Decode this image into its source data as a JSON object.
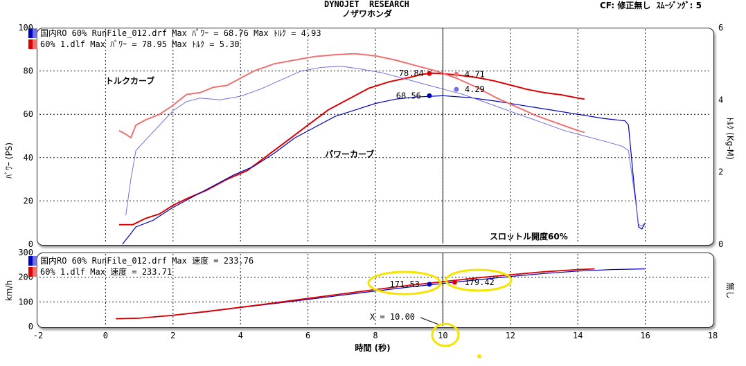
{
  "header": {
    "title": "DYNOJET  RESEARCH",
    "subtitle": "ノザワホンダ",
    "cf_setting": "CF: 修正無し  ｽﾑｰｼﾞﾝｸﾞ: 5"
  },
  "colors": {
    "red": "#dd0000",
    "light_red": "#f07070",
    "blue": "#0000bb",
    "light_blue": "#7070e0",
    "yellow": "#f5e400"
  },
  "chart_data": [
    {
      "type": "line",
      "ylabel": "ﾊﾟﾜｰ (PS)",
      "y2label": "ﾄﾙｸ (Kg-M)",
      "xlim": [
        -2,
        18
      ],
      "ylim": [
        0,
        100
      ],
      "y2lim": [
        0,
        6
      ],
      "yticks": [
        "0",
        "20",
        "40",
        "60",
        "80",
        "100"
      ],
      "y2ticks": [
        "0",
        "2",
        "4",
        "6"
      ],
      "grid": true,
      "legend_position": "top-left",
      "legend": [
        "国内RO  60%  RunFile_012.drf Max ﾊﾟﾜｰ = 68.76   Max ﾄﾙｸ = 4.93",
        "60% 1.dlf Max ﾊﾟﾜｰ = 78.95  Max ﾄﾙｸ = 5.30"
      ],
      "annotations": [
        "トルクカーブ",
        "パワーカーブ",
        "スロットル開度60%"
      ],
      "cursor_x": 10,
      "cursor_labels": [
        {
          "text": "78.84",
          "value": 78.84,
          "series": "60% 1.dlf パワー"
        },
        {
          "text": "4.71",
          "value": 4.71,
          "series": "60% 1.dlf トルク"
        },
        {
          "text": "68.56",
          "value": 68.56,
          "series": "国内RO 60% パワー"
        },
        {
          "text": "4.29",
          "value": 4.29,
          "series": "国内RO 60% トルク"
        }
      ],
      "series": [
        {
          "axis": "power",
          "color": "#dd0000",
          "width": 2,
          "x": [
            0.4,
            0.8,
            1.2,
            1.6,
            2.0,
            2.4,
            3.0,
            3.6,
            4.2,
            4.8,
            5.4,
            6.0,
            6.6,
            7.2,
            7.8,
            8.4,
            9.0,
            9.4,
            9.7,
            10.0,
            10.5,
            11.0,
            11.5,
            12.0,
            12.5,
            13.0,
            13.5,
            14.0,
            14.2
          ],
          "y": [
            9,
            9,
            12,
            14,
            18,
            21,
            25,
            30,
            34,
            41,
            48,
            55,
            62,
            67,
            72,
            75,
            77,
            78.5,
            79,
            78.8,
            78,
            77,
            75.5,
            73.5,
            71.5,
            70,
            69,
            67.5,
            67
          ]
        },
        {
          "axis": "power",
          "color": "#0000bb",
          "width": 1.2,
          "x": [
            0.5,
            0.9,
            1.4,
            2.0,
            2.6,
            3.2,
            3.8,
            4.4,
            5.0,
            5.6,
            6.2,
            6.8,
            7.4,
            8.0,
            8.6,
            9.2,
            10.0,
            10.8,
            11.6,
            12.4,
            13.2,
            14.0,
            14.8,
            15.4,
            15.5,
            15.65,
            15.8,
            15.9,
            16.0
          ],
          "y": [
            0,
            8,
            11,
            17,
            22,
            27,
            32,
            36,
            42,
            49,
            54,
            59,
            62,
            65,
            67,
            68,
            68.6,
            67.7,
            66,
            64,
            62,
            60,
            58,
            57,
            55,
            30,
            8,
            7,
            10
          ]
        },
        {
          "axis": "torque",
          "color": "#f07070",
          "width": 2,
          "x": [
            0.4,
            0.6,
            0.75,
            0.9,
            1.2,
            1.6,
            2.0,
            2.4,
            2.8,
            3.2,
            3.6,
            4.0,
            4.4,
            5.0,
            5.6,
            6.2,
            6.8,
            7.4,
            8.0,
            8.6,
            9.2,
            9.8,
            10.4,
            11.0,
            11.6,
            12.2,
            12.8,
            13.4,
            14.0,
            14.2
          ],
          "y": [
            3.15,
            3.05,
            2.95,
            3.3,
            3.45,
            3.6,
            3.85,
            4.15,
            4.2,
            4.35,
            4.4,
            4.6,
            4.8,
            5.0,
            5.1,
            5.2,
            5.25,
            5.28,
            5.22,
            5.1,
            4.95,
            4.8,
            4.6,
            4.35,
            4.05,
            3.8,
            3.55,
            3.35,
            3.15,
            3.1
          ]
        },
        {
          "axis": "torque",
          "color": "#7070e0",
          "width": 1,
          "x": [
            0.6,
            0.75,
            0.9,
            1.2,
            1.6,
            2.0,
            2.4,
            2.8,
            3.4,
            4.0,
            4.6,
            5.2,
            5.8,
            6.4,
            7.0,
            7.6,
            8.2,
            8.8,
            9.4,
            10.0,
            10.6,
            11.2,
            11.8,
            12.4,
            13.0,
            13.6,
            14.2,
            14.8,
            15.3,
            15.5,
            15.65,
            15.8,
            15.9,
            16.0
          ],
          "y": [
            0.8,
            1.8,
            2.6,
            2.9,
            3.3,
            3.7,
            3.95,
            4.05,
            4.0,
            4.1,
            4.3,
            4.55,
            4.8,
            4.9,
            4.93,
            4.85,
            4.75,
            4.6,
            4.45,
            4.3,
            4.15,
            3.95,
            3.75,
            3.55,
            3.35,
            3.15,
            3.0,
            2.85,
            2.72,
            2.6,
            1.6,
            0.55,
            0.5,
            0.6
          ]
        }
      ]
    },
    {
      "type": "line",
      "ylabel": "km/h",
      "y2label": "無し",
      "xlabel": "時間 (秒)",
      "xlim": [
        -2,
        18
      ],
      "ylim": [
        0,
        300
      ],
      "xticks": [
        "-2",
        "0",
        "2",
        "4",
        "6",
        "8",
        "10",
        "12",
        "14",
        "16",
        "18"
      ],
      "yticks": [
        "0",
        "100",
        "200",
        "300"
      ],
      "grid": true,
      "legend_position": "top-left",
      "legend": [
        "国内RO  60%  RunFile_012.drf Max 速度 = 233.76",
        "60% 1.dlf Max 速度 = 233.71"
      ],
      "cursor_x": 10,
      "cursor_readout": "X = 10.00",
      "cursor_labels": [
        {
          "text": "171.53",
          "value": 171.53,
          "series": "国内RO 60%"
        },
        {
          "text": "179.42",
          "value": 179.42,
          "series": "60% 1.dlf"
        }
      ],
      "series": [
        {
          "color": "#0000bb",
          "width": 1.2,
          "x": [
            0.3,
            1,
            2,
            3,
            4,
            5,
            6,
            7,
            8,
            9,
            10,
            11,
            12,
            13,
            14,
            15,
            16
          ],
          "y": [
            32,
            34,
            45,
            60,
            77,
            93,
            110,
            127,
            144,
            160,
            175,
            189,
            203,
            215,
            225,
            231,
            233.8
          ]
        },
        {
          "color": "#dd0000",
          "width": 1.8,
          "x": [
            0.3,
            1,
            2,
            3,
            4,
            5,
            6,
            7,
            8,
            9,
            10,
            11,
            12,
            13,
            14,
            14.5
          ],
          "y": [
            32,
            34,
            46,
            61,
            78,
            96,
            114,
            132,
            150,
            167,
            182,
            197,
            210,
            222,
            231,
            233.7
          ]
        }
      ]
    }
  ]
}
